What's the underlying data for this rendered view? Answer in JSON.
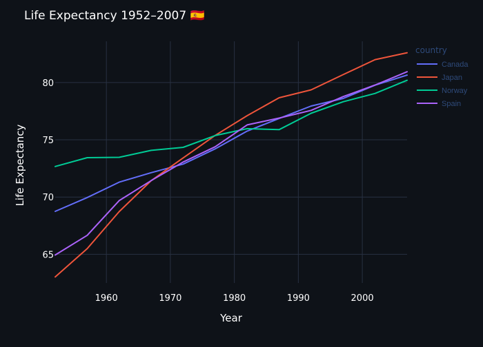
{
  "chart_data": {
    "type": "line",
    "title": "Life Expectancy 1952–2007 🇪🇸",
    "xlabel": "Year",
    "ylabel": "Life Expectancy",
    "xlim": [
      1952,
      2007
    ],
    "ylim": [
      62.5,
      83.6
    ],
    "x_ticks": [
      1960,
      1970,
      1980,
      1990,
      2000
    ],
    "y_ticks": [
      65,
      70,
      75,
      80
    ],
    "grid": true,
    "legend_title": "country",
    "legend_position": "top-right",
    "x": [
      1952,
      1957,
      1962,
      1967,
      1972,
      1977,
      1982,
      1987,
      1992,
      1997,
      2002,
      2007
    ],
    "series": [
      {
        "name": "Canada",
        "color": "#636efa",
        "values": [
          68.75,
          69.96,
          71.3,
          72.13,
          72.88,
          74.21,
          75.76,
          76.86,
          77.95,
          78.61,
          79.77,
          80.65
        ]
      },
      {
        "name": "Japan",
        "color": "#ef553b",
        "values": [
          63.03,
          65.5,
          68.73,
          71.43,
          73.42,
          75.38,
          77.11,
          78.67,
          79.36,
          80.69,
          82.0,
          82.6
        ]
      },
      {
        "name": "Norway",
        "color": "#00cc96",
        "values": [
          72.67,
          73.44,
          73.47,
          74.08,
          74.34,
          75.37,
          75.97,
          75.89,
          77.32,
          78.32,
          79.05,
          80.2
        ]
      },
      {
        "name": "Spain",
        "color": "#ab63fa",
        "values": [
          64.94,
          66.66,
          69.69,
          71.44,
          73.06,
          74.39,
          76.3,
          76.9,
          77.57,
          78.77,
          79.78,
          80.94
        ]
      }
    ]
  }
}
